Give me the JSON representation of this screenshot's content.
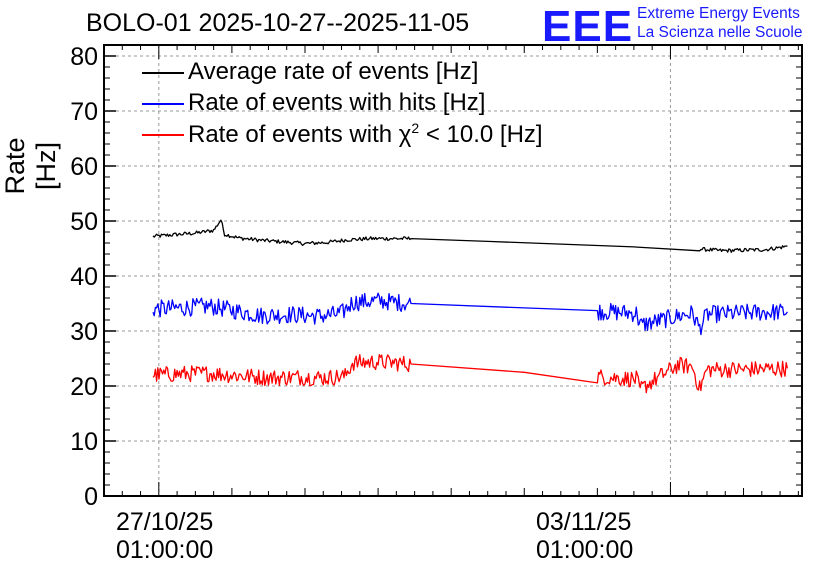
{
  "title": "BOLO-01 2025-10-27--2025-11-05",
  "logo": {
    "mark": "EEE",
    "line1": "Extreme Energy Events",
    "line2": "La Scienza nelle Scuole",
    "color": "#1a1aff"
  },
  "chart_data": {
    "type": "line",
    "title": "BOLO-01 2025-10-27--2025-11-05",
    "ylabel": "Rate [Hz]",
    "xlabel": "",
    "ylim": [
      0,
      82
    ],
    "yticks": [
      "0",
      "10",
      "20",
      "30",
      "40",
      "50",
      "60",
      "70",
      "80"
    ],
    "xlim_days": [
      -0.75,
      8.8
    ],
    "xticks": [
      {
        "day": 0,
        "date": "27/10/25",
        "time": "01:00:00"
      },
      {
        "day": 7,
        "date": "03/11/25",
        "time": "01:00:00"
      }
    ],
    "grid": true,
    "legend_position": "top-left",
    "series": [
      {
        "name": "Average rate of events [Hz]",
        "color": "#000000",
        "points": [
          [
            -0.08,
            47.2
          ],
          [
            0.2,
            47.5
          ],
          [
            0.5,
            47.8
          ],
          [
            0.75,
            48.3
          ],
          [
            0.85,
            50.2
          ],
          [
            0.9,
            47.6
          ],
          [
            1.1,
            46.9
          ],
          [
            1.4,
            46.5
          ],
          [
            1.7,
            46.2
          ],
          [
            2.0,
            45.9
          ],
          [
            2.3,
            46.1
          ],
          [
            2.6,
            46.6
          ],
          [
            2.9,
            46.8
          ],
          [
            3.2,
            46.8
          ],
          [
            3.45,
            46.8
          ],
          [
            4.5,
            46.3
          ],
          [
            5.5,
            45.8
          ],
          [
            6.5,
            45.3
          ],
          [
            7.4,
            44.9
          ],
          [
            7.7,
            44.6
          ],
          [
            8.0,
            44.7
          ],
          [
            8.3,
            44.8
          ],
          [
            8.6,
            45.4
          ]
        ],
        "noise": 0.35
      },
      {
        "name": "Rate of events with hits [Hz]",
        "color": "#0000ff",
        "points": [
          [
            -0.08,
            34.0
          ],
          [
            0.3,
            34.2
          ],
          [
            0.7,
            34.5
          ],
          [
            1.0,
            33.8
          ],
          [
            1.4,
            32.8
          ],
          [
            1.8,
            33.0
          ],
          [
            2.2,
            32.7
          ],
          [
            2.5,
            33.2
          ],
          [
            2.65,
            35.2
          ],
          [
            3.0,
            35.5
          ],
          [
            3.45,
            35.0
          ],
          [
            5.0,
            34.2
          ],
          [
            6.0,
            33.6
          ],
          [
            6.55,
            33.2
          ],
          [
            6.57,
            31.0
          ],
          [
            7.2,
            33.0
          ],
          [
            7.3,
            33.2
          ],
          [
            7.4,
            30.5
          ],
          [
            7.5,
            33.0
          ],
          [
            8.0,
            33.3
          ],
          [
            8.6,
            33.5
          ]
        ],
        "noise": 1.6
      },
      {
        "name": "Rate of events with χ² < 10.0 [Hz]",
        "color": "#ff0000",
        "points": [
          [
            -0.08,
            22.0
          ],
          [
            0.3,
            22.2
          ],
          [
            0.7,
            22.3
          ],
          [
            1.1,
            21.9
          ],
          [
            1.5,
            21.5
          ],
          [
            1.9,
            21.6
          ],
          [
            2.3,
            21.5
          ],
          [
            2.55,
            21.8
          ],
          [
            2.65,
            24.2
          ],
          [
            3.0,
            24.4
          ],
          [
            3.45,
            24.0
          ],
          [
            5.0,
            22.5
          ],
          [
            6.0,
            21.7
          ],
          [
            6.55,
            21.2
          ],
          [
            6.57,
            19.3
          ],
          [
            7.1,
            23.8
          ],
          [
            7.3,
            23.5
          ],
          [
            7.4,
            19.5
          ],
          [
            7.5,
            23.0
          ],
          [
            8.0,
            23.0
          ],
          [
            8.6,
            23.2
          ]
        ],
        "noise": 1.5
      }
    ]
  },
  "legend": {
    "item0": "Average rate of events [Hz]",
    "item1": "Rate of events with hits [Hz]",
    "item2_pre": "Rate of events with χ",
    "item2_sup": "2",
    "item2_post": " < 10.0 [Hz]"
  }
}
